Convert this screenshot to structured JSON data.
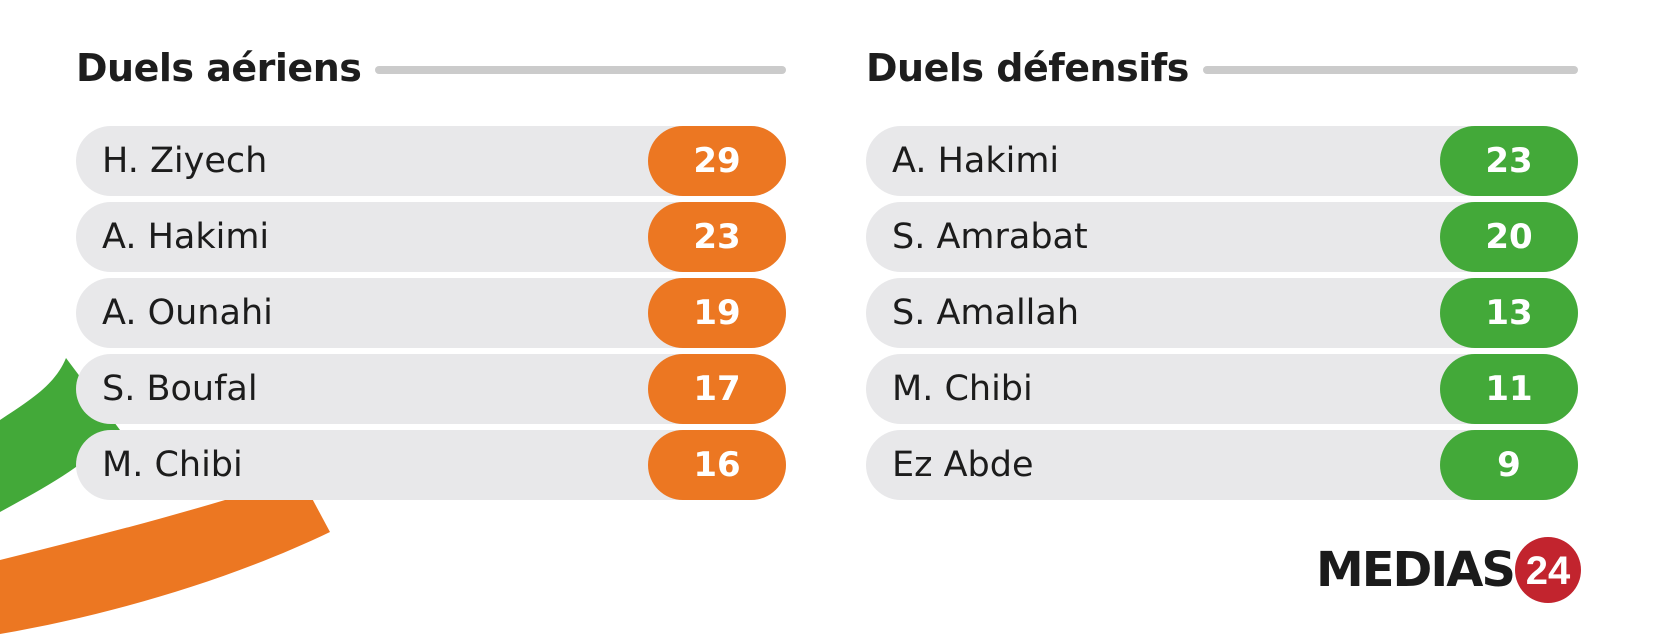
{
  "left_panel": {
    "title": "Duels aériens",
    "accent_color": "#ec7722",
    "rows": [
      {
        "name": "H. Ziyech",
        "value": "29"
      },
      {
        "name": "A. Hakimi",
        "value": "23"
      },
      {
        "name": "A. Ounahi",
        "value": "19"
      },
      {
        "name": "S. Boufal",
        "value": "17"
      },
      {
        "name": "M. Chibi",
        "value": "16"
      }
    ]
  },
  "right_panel": {
    "title": "Duels défensifs",
    "accent_color": "#43a939",
    "rows": [
      {
        "name": "A. Hakimi",
        "value": "23"
      },
      {
        "name": "S. Amrabat",
        "value": "20"
      },
      {
        "name": "S. Amallah",
        "value": "13"
      },
      {
        "name": "M. Chibi",
        "value": "11"
      },
      {
        "name": "Ez Abde",
        "value": "9"
      }
    ]
  },
  "logo": {
    "wordmark": "MEDIAS24",
    "text": "MEDIAS",
    "badge": "24",
    "badge_color": "#c2242e"
  },
  "decoration": {
    "stripe_colors": [
      "#43a939",
      "#ec7722"
    ]
  }
}
